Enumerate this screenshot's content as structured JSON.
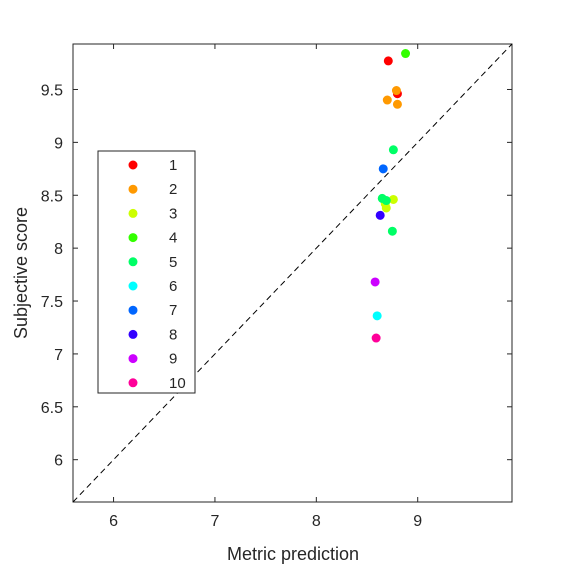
{
  "chart_data": {
    "type": "scatter",
    "title": "",
    "xlabel": "Metric prediction",
    "ylabel": "Subjective score",
    "xlim": [
      5.6,
      9.93
    ],
    "ylim": [
      5.6,
      9.93
    ],
    "xticks": [
      6,
      7,
      8,
      9
    ],
    "yticks": [
      6,
      6.5,
      7,
      7.5,
      8,
      8.5,
      9,
      9.5
    ],
    "grid": false,
    "legend": "left",
    "reference_line": "y = x (dashed)",
    "series": [
      {
        "name": "1",
        "color": "#ff0000",
        "points": [
          {
            "x": 8.71,
            "y": 9.77
          },
          {
            "x": 8.8,
            "y": 9.46
          }
        ]
      },
      {
        "name": "2",
        "color": "#ff9900",
        "points": [
          {
            "x": 8.79,
            "y": 9.49
          },
          {
            "x": 8.7,
            "y": 9.4
          },
          {
            "x": 8.8,
            "y": 9.36
          }
        ]
      },
      {
        "name": "3",
        "color": "#ccff00",
        "points": [
          {
            "x": 8.68,
            "y": 8.42
          },
          {
            "x": 8.76,
            "y": 8.46
          },
          {
            "x": 8.69,
            "y": 8.38
          }
        ]
      },
      {
        "name": "4",
        "color": "#33ff00",
        "points": [
          {
            "x": 8.88,
            "y": 9.84
          }
        ]
      },
      {
        "name": "5",
        "color": "#00ff66",
        "points": [
          {
            "x": 8.76,
            "y": 8.93
          },
          {
            "x": 8.65,
            "y": 8.47
          },
          {
            "x": 8.69,
            "y": 8.45
          },
          {
            "x": 8.75,
            "y": 8.16
          }
        ]
      },
      {
        "name": "6",
        "color": "#00ffff",
        "points": [
          {
            "x": 8.6,
            "y": 7.36
          }
        ]
      },
      {
        "name": "7",
        "color": "#0066ff",
        "points": [
          {
            "x": 8.66,
            "y": 8.75
          }
        ]
      },
      {
        "name": "8",
        "color": "#3300ff",
        "points": [
          {
            "x": 8.63,
            "y": 8.31
          }
        ]
      },
      {
        "name": "9",
        "color": "#cc00ff",
        "points": [
          {
            "x": 8.58,
            "y": 7.68
          }
        ]
      },
      {
        "name": "10",
        "color": "#ff0099",
        "points": [
          {
            "x": 8.59,
            "y": 7.15
          }
        ]
      }
    ]
  }
}
